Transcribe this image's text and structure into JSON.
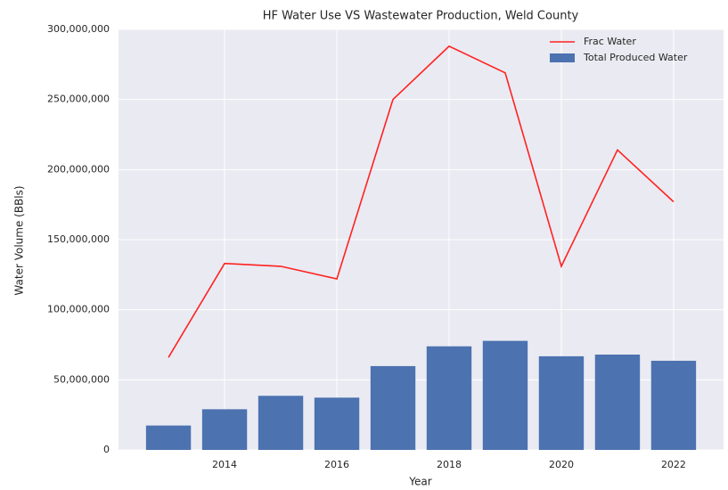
{
  "chart_data": {
    "type": "bar+line",
    "title": "HF Water Use VS Wastewater Production, Weld County",
    "xlabel": "Year",
    "ylabel": "Water Volume (BBls)",
    "x": [
      2013,
      2014,
      2015,
      2016,
      2017,
      2018,
      2019,
      2020,
      2021,
      2022
    ],
    "series": [
      {
        "name": "Frac Water",
        "type": "line",
        "color": "#ff2222",
        "values": [
          66000000,
          133000000,
          131000000,
          122000000,
          250000000,
          288000000,
          269000000,
          131000000,
          214000000,
          177000000
        ]
      },
      {
        "name": "Total Produced Water",
        "type": "bar",
        "color": "#4c72b0",
        "values": [
          17400000,
          29000000,
          38600000,
          37300000,
          59800000,
          73900000,
          77800000,
          66800000,
          68000000,
          63600000
        ]
      }
    ],
    "xlim": [
      2012.11,
      2022.89
    ],
    "xticks": [
      2014,
      2016,
      2018,
      2020,
      2022
    ],
    "ylim": [
      0,
      300000000
    ],
    "yticks": [
      0,
      {
        "value": 50000000,
        "label": "50,000,000"
      },
      {
        "value": 100000000,
        "label": "100,000,000"
      },
      {
        "value": 150000000,
        "label": "150,000,000"
      },
      {
        "value": 200000000,
        "label": "200,000,000"
      },
      {
        "value": 250000000,
        "label": "250,000,000"
      },
      {
        "value": 300000000,
        "label": "300,000,000"
      }
    ],
    "grid": true,
    "legend": "upper right"
  }
}
